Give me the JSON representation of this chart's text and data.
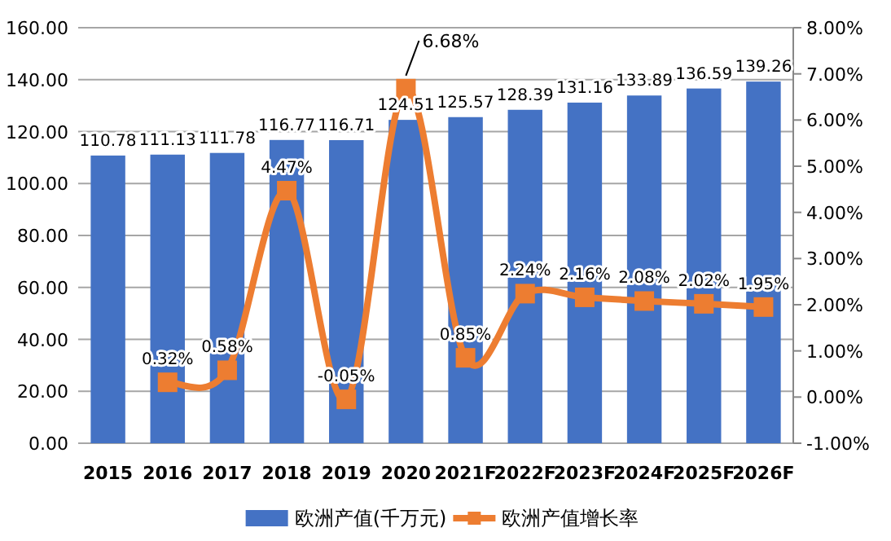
{
  "chart_data": {
    "type": "bar",
    "categories": [
      "2015",
      "2016",
      "2017",
      "2018",
      "2019",
      "2020",
      "2021F",
      "2022F",
      "2023F",
      "2024F",
      "2025F",
      "2026F"
    ],
    "series": [
      {
        "name": "欧洲产值(千万元)",
        "color": "#4472c4",
        "values": [
          110.78,
          111.13,
          111.78,
          116.77,
          116.71,
          124.51,
          125.57,
          128.39,
          131.16,
          133.89,
          136.59,
          139.26
        ],
        "value_labels": [
          "110.78",
          "111.13",
          "111.78",
          "116.77",
          "116.71",
          "124.51",
          "125.57",
          "128.39",
          "131.16",
          "133.89",
          "136.59",
          "139.26"
        ]
      },
      {
        "name": "欧洲产值增长率",
        "type": "line",
        "axis": "y2",
        "color": "#ed7d31",
        "marker": "square",
        "values": [
          null,
          0.32,
          0.58,
          4.47,
          -0.05,
          6.68,
          0.85,
          2.24,
          2.16,
          2.08,
          2.02,
          1.95
        ],
        "value_labels": [
          null,
          "0.32%",
          "0.58%",
          "4.47%",
          "-0.05%",
          "6.68%",
          "0.85%",
          "2.24%",
          "2.16%",
          "2.08%",
          "2.02%",
          "1.95%"
        ]
      }
    ],
    "ylim": [
      0,
      160
    ],
    "yticks": [
      {
        "value": 0,
        "label": "0.00"
      },
      {
        "value": 20,
        "label": "20.00"
      },
      {
        "value": 40,
        "label": "40.00"
      },
      {
        "value": 60,
        "label": "60.00"
      },
      {
        "value": 80,
        "label": "80.00"
      },
      {
        "value": 100,
        "label": "100.00"
      },
      {
        "value": 120,
        "label": "120.00"
      },
      {
        "value": 140,
        "label": "140.00"
      },
      {
        "value": 160,
        "label": "160.00"
      }
    ],
    "y2lim": [
      -1,
      8
    ],
    "y2ticks": [
      {
        "value": -1,
        "label": "-1.00%"
      },
      {
        "value": 0,
        "label": "0.00%"
      },
      {
        "value": 1,
        "label": "1.00%"
      },
      {
        "value": 2,
        "label": "2.00%"
      },
      {
        "value": 3,
        "label": "3.00%"
      },
      {
        "value": 4,
        "label": "4.00%"
      },
      {
        "value": 5,
        "label": "5.00%"
      },
      {
        "value": 6,
        "label": "6.00%"
      },
      {
        "value": 7,
        "label": "7.00%"
      },
      {
        "value": 8,
        "label": "8.00%"
      }
    ],
    "grid": "y",
    "legend": "bottom"
  }
}
